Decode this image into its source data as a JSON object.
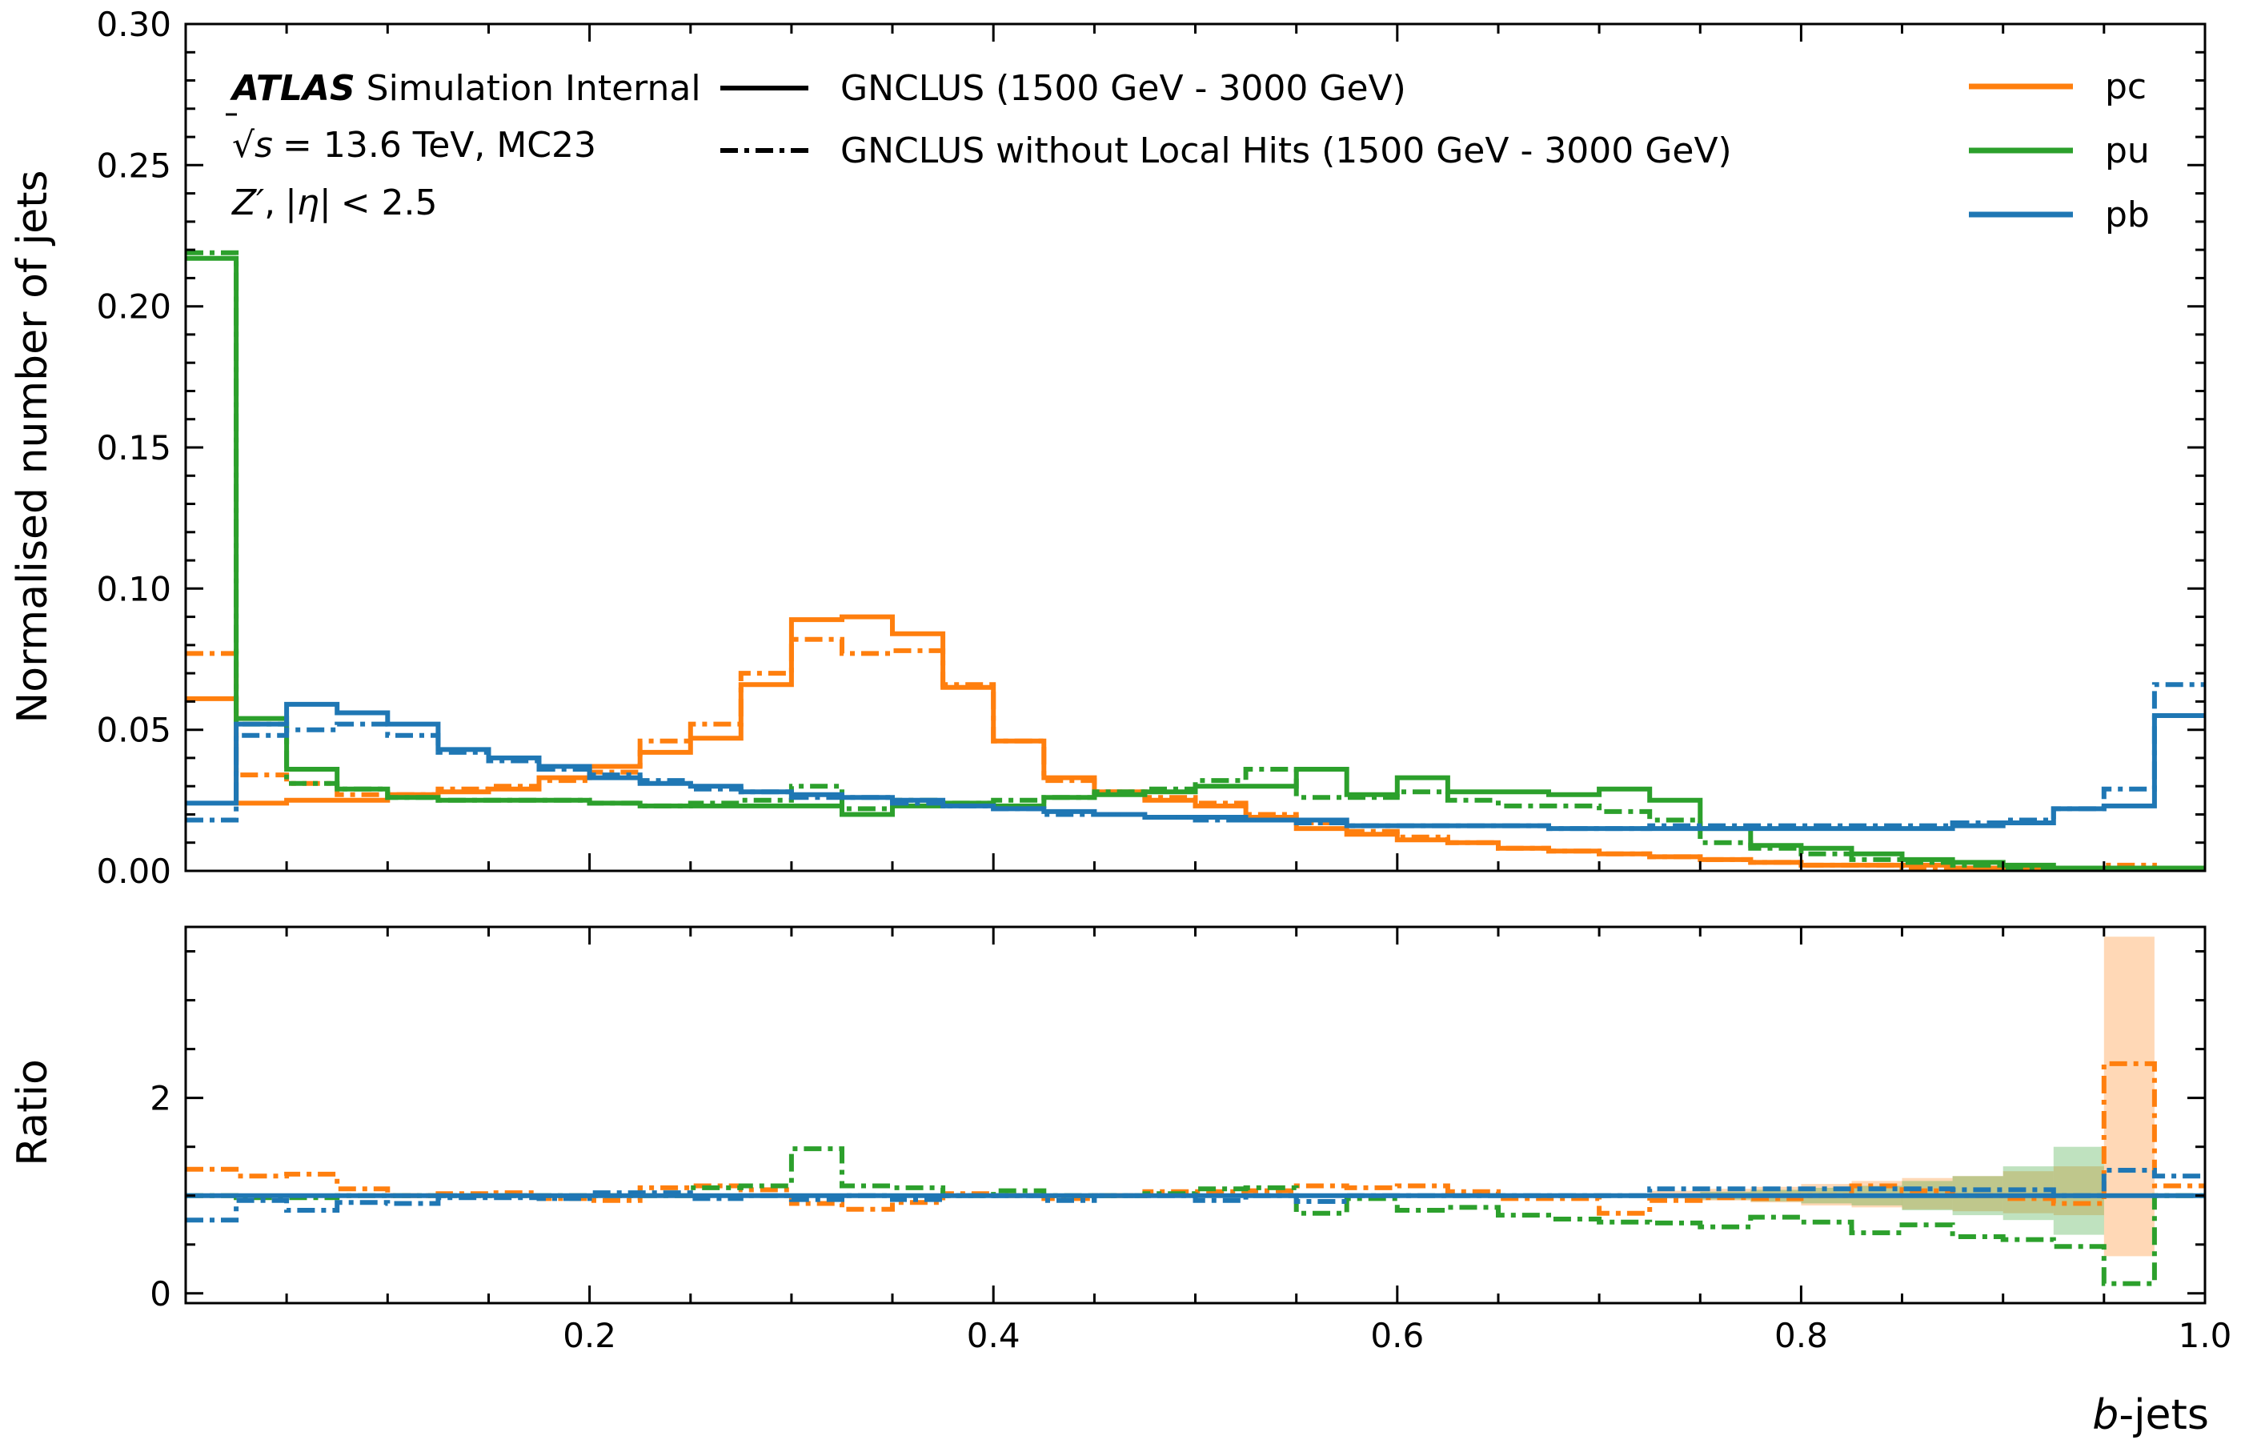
{
  "chart_data": {
    "type": "line",
    "drawstyle": "steps",
    "x_edges": [
      0.0,
      0.025,
      0.05,
      0.075,
      0.1,
      0.125,
      0.15,
      0.175,
      0.2,
      0.225,
      0.25,
      0.275,
      0.3,
      0.325,
      0.35,
      0.375,
      0.4,
      0.425,
      0.45,
      0.475,
      0.5,
      0.525,
      0.55,
      0.575,
      0.6,
      0.625,
      0.65,
      0.675,
      0.7,
      0.725,
      0.75,
      0.775,
      0.8,
      0.825,
      0.85,
      0.875,
      0.9,
      0.925,
      0.95,
      0.975,
      1.0
    ],
    "xlabel_pre": "",
    "xlabel_italic": "b",
    "xlabel_post": "-jets",
    "xlim": [
      0.0,
      1.0
    ],
    "x_ticks": [
      0.2,
      0.4,
      0.6,
      0.8,
      1.0
    ],
    "x_tick_labels": [
      "0.2",
      "0.4",
      "0.6",
      "0.8",
      "1.0"
    ],
    "grid": false,
    "top_panel": {
      "ylabel": "Normalised number of jets",
      "ylim": [
        0.0,
        0.3
      ],
      "y_ticks": [
        0.0,
        0.05,
        0.1,
        0.15,
        0.2,
        0.25,
        0.3
      ],
      "y_tick_labels": [
        "0.00",
        "0.05",
        "0.10",
        "0.15",
        "0.20",
        "0.25",
        "0.30"
      ],
      "series": [
        {
          "name": "pc",
          "style": "solid",
          "color": "#ff7f0e",
          "values": [
            0.061,
            0.024,
            0.025,
            0.025,
            0.027,
            0.028,
            0.029,
            0.033,
            0.037,
            0.042,
            0.047,
            0.066,
            0.089,
            0.09,
            0.084,
            0.065,
            0.046,
            0.033,
            0.028,
            0.025,
            0.023,
            0.019,
            0.015,
            0.013,
            0.011,
            0.01,
            0.008,
            0.007,
            0.006,
            0.005,
            0.004,
            0.003,
            0.002,
            0.002,
            0.002,
            0.001,
            0.001,
            0.001,
            0.001,
            0.001
          ]
        },
        {
          "name": "pc (without Local Hits)",
          "style": "dashdot",
          "color": "#ff7f0e",
          "values": [
            0.077,
            0.034,
            0.031,
            0.027,
            0.027,
            0.029,
            0.03,
            0.032,
            0.035,
            0.046,
            0.052,
            0.07,
            0.082,
            0.077,
            0.078,
            0.066,
            0.046,
            0.032,
            0.028,
            0.026,
            0.024,
            0.02,
            0.017,
            0.014,
            0.012,
            0.01,
            0.008,
            0.007,
            0.006,
            0.005,
            0.004,
            0.003,
            0.002,
            0.002,
            0.001,
            0.001,
            0.001,
            0.001,
            0.002,
            0.001
          ]
        },
        {
          "name": "pu",
          "style": "solid",
          "color": "#2ca02c",
          "values": [
            0.217,
            0.054,
            0.036,
            0.029,
            0.026,
            0.025,
            0.025,
            0.025,
            0.024,
            0.023,
            0.023,
            0.023,
            0.023,
            0.02,
            0.023,
            0.024,
            0.023,
            0.026,
            0.027,
            0.028,
            0.03,
            0.03,
            0.036,
            0.027,
            0.033,
            0.028,
            0.028,
            0.027,
            0.029,
            0.025,
            0.015,
            0.009,
            0.008,
            0.006,
            0.004,
            0.003,
            0.002,
            0.001,
            0.001,
            0.001
          ]
        },
        {
          "name": "pu (without Local Hits)",
          "style": "dashdot",
          "color": "#2ca02c",
          "values": [
            0.219,
            0.052,
            0.031,
            0.029,
            0.026,
            0.025,
            0.025,
            0.025,
            0.024,
            0.023,
            0.024,
            0.025,
            0.03,
            0.022,
            0.025,
            0.024,
            0.025,
            0.026,
            0.028,
            0.029,
            0.032,
            0.036,
            0.026,
            0.026,
            0.028,
            0.025,
            0.023,
            0.023,
            0.021,
            0.018,
            0.01,
            0.008,
            0.006,
            0.004,
            0.003,
            0.002,
            0.001,
            0.001,
            0.001,
            0.001
          ]
        },
        {
          "name": "pb",
          "style": "solid",
          "color": "#1f77b4",
          "values": [
            0.024,
            0.052,
            0.059,
            0.056,
            0.052,
            0.043,
            0.04,
            0.037,
            0.033,
            0.031,
            0.03,
            0.028,
            0.027,
            0.026,
            0.025,
            0.023,
            0.022,
            0.021,
            0.02,
            0.019,
            0.019,
            0.018,
            0.018,
            0.016,
            0.016,
            0.016,
            0.016,
            0.015,
            0.015,
            0.015,
            0.015,
            0.015,
            0.015,
            0.015,
            0.015,
            0.016,
            0.017,
            0.022,
            0.023,
            0.055
          ]
        },
        {
          "name": "pb (without Local Hits)",
          "style": "dashdot",
          "color": "#1f77b4",
          "values": [
            0.018,
            0.048,
            0.05,
            0.052,
            0.048,
            0.042,
            0.039,
            0.036,
            0.034,
            0.032,
            0.029,
            0.028,
            0.026,
            0.026,
            0.024,
            0.023,
            0.022,
            0.02,
            0.02,
            0.019,
            0.018,
            0.018,
            0.017,
            0.016,
            0.016,
            0.016,
            0.016,
            0.015,
            0.015,
            0.016,
            0.016,
            0.016,
            0.016,
            0.016,
            0.016,
            0.017,
            0.018,
            0.022,
            0.029,
            0.066
          ]
        }
      ]
    },
    "bottom_panel": {
      "ylabel": "Ratio",
      "ylim": [
        -0.1,
        3.75
      ],
      "y_ticks": [
        0,
        2
      ],
      "y_tick_labels": [
        "0",
        "2"
      ],
      "series": [
        {
          "name": "pc ratio",
          "style": "dashdot",
          "color": "#ff7f0e",
          "values": [
            1.27,
            1.2,
            1.22,
            1.07,
            1.0,
            1.02,
            1.03,
            0.97,
            0.95,
            1.08,
            1.1,
            1.06,
            0.92,
            0.86,
            0.93,
            1.02,
            1.0,
            0.97,
            1.0,
            1.04,
            1.04,
            1.05,
            1.1,
            1.08,
            1.1,
            1.04,
            0.97,
            0.97,
            0.82,
            0.95,
            0.98,
            0.97,
            1.0,
            1.1,
            1.05,
            1.0,
            0.97,
            0.92,
            2.35,
            1.1
          ],
          "band_low": [
            1.0,
            1.0,
            1.0,
            1.0,
            1.0,
            1.0,
            1.0,
            1.0,
            1.0,
            1.0,
            1.0,
            1.0,
            1.0,
            1.0,
            1.0,
            1.0,
            1.0,
            1.0,
            1.0,
            1.0,
            1.0,
            1.0,
            1.0,
            1.0,
            1.0,
            1.0,
            1.0,
            1.0,
            1.0,
            0.97,
            0.95,
            0.93,
            0.9,
            0.88,
            0.86,
            0.84,
            0.82,
            0.8,
            0.38,
            1.0
          ],
          "band_high": [
            1.0,
            1.0,
            1.0,
            1.0,
            1.0,
            1.0,
            1.0,
            1.0,
            1.0,
            1.0,
            1.0,
            1.0,
            1.0,
            1.0,
            1.0,
            1.0,
            1.0,
            1.0,
            1.0,
            1.0,
            1.0,
            1.0,
            1.0,
            1.0,
            1.0,
            1.0,
            1.0,
            1.0,
            1.0,
            1.05,
            1.07,
            1.09,
            1.12,
            1.15,
            1.18,
            1.2,
            1.25,
            1.3,
            3.65,
            1.0
          ]
        },
        {
          "name": "pu ratio",
          "style": "dashdot",
          "color": "#2ca02c",
          "values": [
            1.0,
            0.98,
            0.98,
            1.0,
            1.0,
            1.0,
            1.0,
            1.0,
            1.0,
            1.0,
            1.08,
            1.1,
            1.48,
            1.1,
            1.08,
            1.0,
            1.05,
            1.0,
            1.0,
            1.02,
            1.07,
            1.08,
            0.82,
            0.97,
            0.85,
            0.88,
            0.8,
            0.76,
            0.73,
            0.72,
            0.68,
            0.78,
            0.73,
            0.62,
            0.7,
            0.58,
            0.55,
            0.48,
            0.1,
            1.0
          ],
          "band_low": [
            1.0,
            1.0,
            1.0,
            1.0,
            1.0,
            1.0,
            1.0,
            1.0,
            1.0,
            1.0,
            1.0,
            1.0,
            1.0,
            1.0,
            1.0,
            1.0,
            1.0,
            1.0,
            1.0,
            1.0,
            1.0,
            1.0,
            1.0,
            1.0,
            1.0,
            1.0,
            1.0,
            1.0,
            1.0,
            0.98,
            0.96,
            0.94,
            0.92,
            0.9,
            0.85,
            0.8,
            0.75,
            0.6,
            1.0,
            1.0
          ],
          "band_high": [
            1.0,
            1.0,
            1.0,
            1.0,
            1.0,
            1.0,
            1.0,
            1.0,
            1.0,
            1.0,
            1.0,
            1.0,
            1.0,
            1.0,
            1.0,
            1.0,
            1.0,
            1.0,
            1.0,
            1.0,
            1.0,
            1.0,
            1.0,
            1.0,
            1.0,
            1.0,
            1.0,
            1.0,
            1.0,
            1.02,
            1.04,
            1.06,
            1.08,
            1.1,
            1.15,
            1.2,
            1.3,
            1.5,
            1.0,
            1.0
          ]
        },
        {
          "name": "pb ratio",
          "style": "dashdot",
          "color": "#1f77b4",
          "values": [
            0.75,
            0.95,
            0.85,
            0.93,
            0.92,
            0.98,
            0.98,
            0.97,
            1.03,
            1.03,
            0.97,
            1.0,
            0.96,
            1.0,
            0.96,
            1.0,
            1.0,
            0.95,
            1.0,
            1.0,
            0.95,
            1.0,
            0.94,
            1.0,
            1.0,
            1.0,
            1.0,
            1.0,
            1.0,
            1.07,
            1.07,
            1.07,
            1.07,
            1.07,
            1.07,
            1.06,
            1.06,
            1.0,
            1.26,
            1.2
          ]
        },
        {
          "name": "reference",
          "style": "solid",
          "color": "#1f77b4",
          "value": 1.0
        }
      ]
    },
    "legend_styles": {
      "position": "top-center",
      "entries": [
        {
          "label": "GNCLUS (1500 GeV - 3000 GeV)",
          "style": "solid",
          "color": "#000000"
        },
        {
          "label": "GNCLUS without Local Hits (1500 GeV - 3000 GeV)",
          "style": "dashdot",
          "color": "#000000"
        }
      ]
    },
    "legend_classes": {
      "position": "top-right",
      "entries": [
        {
          "label": "pc",
          "color": "#ff7f0e"
        },
        {
          "label": "pu",
          "color": "#2ca02c"
        },
        {
          "label": "pb",
          "color": "#1f77b4"
        }
      ]
    },
    "annotation": {
      "atlas_bold": "ATLAS",
      "atlas_rest": "Simulation Internal",
      "line2_sqrt": "√",
      "line2_s": "s",
      "line2_rest": "= 13.6 TeV, MC23",
      "line3_z": "Z′",
      "line3_comma": ",",
      "line3_eta": "|η|",
      "line3_rest": "< 2.5"
    }
  }
}
